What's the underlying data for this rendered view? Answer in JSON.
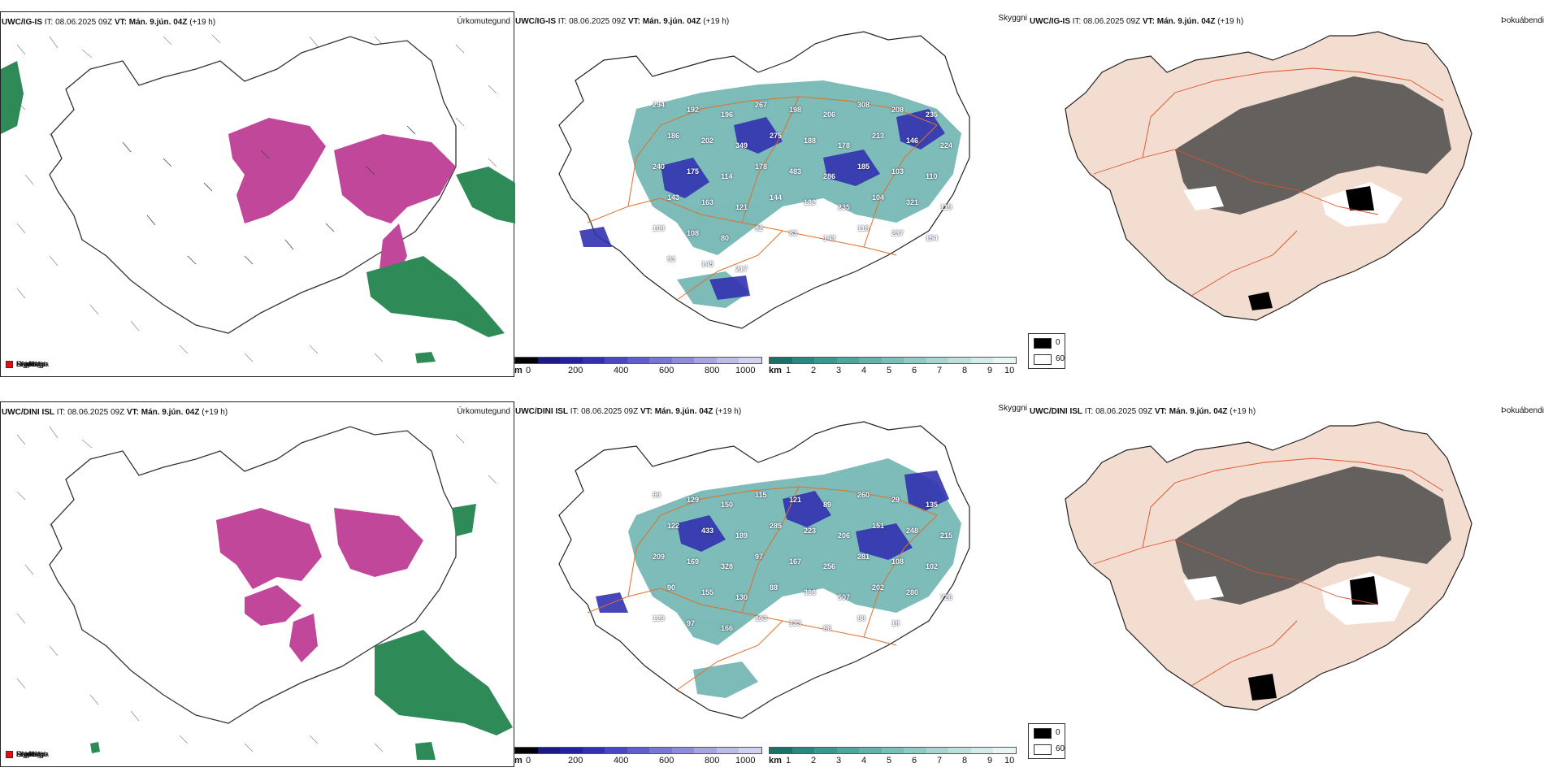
{
  "rows": [
    {
      "model": "UWC/IG-IS",
      "it_label": "IT:",
      "it_value": "08.06.2025 09Z",
      "vt_label": "VT:",
      "vt_value": "Mán. 9.jún. 04Z",
      "lead": "(+19 h)",
      "cloud_labels": [
        "294",
        "192",
        "196",
        "267",
        "198",
        "206",
        "308",
        "208",
        "235",
        "186",
        "202",
        "349",
        "275",
        "188",
        "178",
        "213",
        "146",
        "224",
        "240",
        "175",
        "114",
        "178",
        "483",
        "286",
        "185",
        "103",
        "110",
        "143",
        "163",
        "121",
        "144",
        "132",
        "235",
        "104",
        "321",
        "119",
        "108",
        "108",
        "80",
        "82",
        "83",
        "143",
        "118",
        "237",
        "154",
        "93",
        "145",
        "217"
      ]
    },
    {
      "model": "UWC/DINI ISL",
      "it_label": "IT:",
      "it_value": "08.06.2025 09Z",
      "vt_label": "VT:",
      "vt_value": "Mán. 9.jún. 04Z",
      "lead": "(+19 h)",
      "cloud_labels": [
        "99",
        "129",
        "150",
        "115",
        "121",
        "89",
        "260",
        "29",
        "135",
        "122",
        "433",
        "189",
        "285",
        "223",
        "206",
        "151",
        "248",
        "215",
        "209",
        "169",
        "328",
        "97",
        "167",
        "256",
        "281",
        "108",
        "102",
        "90",
        "155",
        "130",
        "88",
        "308",
        "507",
        "202",
        "280",
        "726",
        "129",
        "97",
        "166",
        "103",
        "133",
        "86",
        "88",
        "18"
      ]
    }
  ],
  "titles": {
    "precip": "Úrkomutegund",
    "cloud": "Skyggni",
    "fog": "Þokuábendi"
  },
  "precip_legend": [
    {
      "label": "Súld",
      "color": "#90ee90"
    },
    {
      "label": "Rigning",
      "color": "#2e8b57"
    },
    {
      "label": "Slydda",
      "color": "#f4a6d7"
    },
    {
      "label": "Snjókoma",
      "color": "#c0479a"
    },
    {
      "label": "Frostúði",
      "color": "#87b5e8"
    },
    {
      "label": "Frostregn",
      "color": "#2e6fc0"
    },
    {
      "label": "Snæhagl",
      "color": "#f0a020"
    },
    {
      "label": "Haglél",
      "color": "#e01010"
    }
  ],
  "cloud_base_scale": {
    "unit": "m",
    "ticks": [
      "0",
      "200",
      "400",
      "600",
      "800",
      "1000"
    ],
    "colors": [
      "#000000",
      "#1a1a80",
      "#23239e",
      "#3232b0",
      "#4848c0",
      "#5f5fc8",
      "#7777d0",
      "#8e8ed8",
      "#a5a5e0",
      "#bcbce8",
      "#d0d0f0"
    ]
  },
  "visibility_scale": {
    "unit": "km",
    "ticks": [
      "1",
      "2",
      "3",
      "4",
      "5",
      "6",
      "7",
      "8",
      "9",
      "10"
    ],
    "colors": [
      "#1e6e6a",
      "#2e8480",
      "#3f9590",
      "#52a39e",
      "#66b0ab",
      "#7bbdb8",
      "#91c9c5",
      "#a7d5d1",
      "#bde0dd",
      "#d3ebe9",
      "#e9f5f4"
    ]
  },
  "fog_legend": [
    {
      "label": "0",
      "color": "#000000"
    },
    {
      "label": "60",
      "color": "#ffffff"
    }
  ]
}
